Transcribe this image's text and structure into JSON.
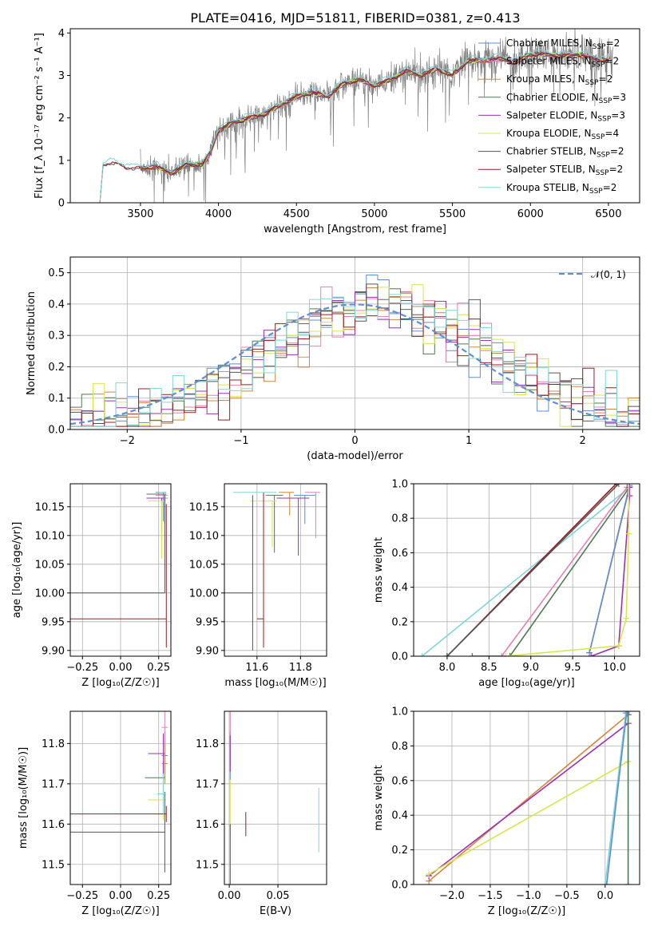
{
  "title": "PLATE=0416, MJD=51811, FIBERID=0381, z=0.413",
  "colors": {
    "Chabrier MILES": "#5b8fcf",
    "Salpeter MILES": "#e57fb5",
    "Kroupa MILES": "#d4843a",
    "Chabrier ELODIE": "#4f7a4f",
    "Salpeter ELODIE": "#9b2fb5",
    "Kroupa ELODIE": "#d9e64a",
    "Chabrier STELIB": "#555555",
    "Salpeter STELIB": "#9b1c1c",
    "Kroupa STELIB": "#7fd6d9",
    "data": "#808080",
    "gauss": "#5b8fd6"
  },
  "chart_data": [
    {
      "type": "line",
      "id": "spectrum",
      "title": "PLATE=0416, MJD=51811, FIBERID=0381, z=0.413",
      "xlabel": "wavelength [Angstrom, rest frame]",
      "ylabel": "Flux [f_λ 10⁻¹⁷ erg cm⁻² s⁻¹ A⁻¹]",
      "xlim": [
        3050,
        6700
      ],
      "ylim": [
        0,
        4.1
      ],
      "xticks": [
        3500,
        4000,
        4500,
        5000,
        5500,
        6000,
        6500
      ],
      "yticks": [
        0,
        1,
        2,
        3,
        4
      ],
      "legend_position": "top-right",
      "legend": [
        {
          "label": "Chabrier MILES, N",
          "sub": "SSP",
          "suffix": "=2",
          "model": "Chabrier MILES"
        },
        {
          "label": "Salpeter MILES, N",
          "sub": "SSP",
          "suffix": "=2",
          "model": "Salpeter MILES"
        },
        {
          "label": "Kroupa MILES, N",
          "sub": "SSP",
          "suffix": "=2",
          "model": "Kroupa MILES"
        },
        {
          "label": "Chabrier ELODIE, N",
          "sub": "SSP",
          "suffix": "=3",
          "model": "Chabrier ELODIE"
        },
        {
          "label": "Salpeter ELODIE, N",
          "sub": "SSP",
          "suffix": "=3",
          "model": "Salpeter ELODIE"
        },
        {
          "label": "Kroupa ELODIE, N",
          "sub": "SSP",
          "suffix": "=4",
          "model": "Kroupa ELODIE"
        },
        {
          "label": "Chabrier STELIB, N",
          "sub": "SSP",
          "suffix": "=2",
          "model": "Chabrier STELIB"
        },
        {
          "label": "Salpeter STELIB, N",
          "sub": "SSP",
          "suffix": "=2",
          "model": "Salpeter STELIB"
        },
        {
          "label": "Kroupa STELIB, N",
          "sub": "SSP",
          "suffix": "=2",
          "model": "Kroupa STELIB"
        }
      ],
      "model_curve": {
        "x": [
          3240,
          3260,
          3300,
          3400,
          3500,
          3600,
          3700,
          3800,
          3900,
          3950,
          4000,
          4100,
          4200,
          4300,
          4400,
          4500,
          4600,
          4700,
          4800,
          4900,
          5000,
          5100,
          5200,
          5300,
          5400,
          5500,
          5600,
          5700,
          5800,
          5900,
          6000,
          6100,
          6200,
          6300,
          6400,
          6500
        ],
        "y": [
          0,
          0.9,
          0.95,
          0.85,
          0.8,
          0.85,
          0.7,
          0.9,
          0.9,
          1.2,
          1.7,
          1.9,
          2.0,
          2.1,
          2.3,
          2.5,
          2.6,
          2.5,
          2.8,
          2.9,
          2.75,
          2.9,
          3.1,
          3.0,
          3.15,
          3.0,
          3.35,
          3.35,
          3.4,
          3.3,
          3.5,
          3.5,
          3.45,
          3.5,
          3.4,
          3.35
        ]
      },
      "data_range": [
        3500,
        6530
      ]
    },
    {
      "type": "line",
      "id": "residuals",
      "xlabel": "(data-model)/error",
      "ylabel": "Normed distribution",
      "xlim": [
        -2.5,
        2.5
      ],
      "ylim": [
        0,
        0.55
      ],
      "xticks": [
        -2,
        -1,
        0,
        1,
        2
      ],
      "yticks": [
        0.0,
        0.1,
        0.2,
        0.3,
        0.4,
        0.5
      ],
      "legend": "𝒩(0, 1)",
      "legend_position": "top-right"
    },
    {
      "type": "scatter",
      "id": "age-vs-Z",
      "xlabel": "Z [log₁₀(Z/Z☉)]",
      "ylabel": "age  [log₁₀(age/yr)]",
      "xlim": [
        -0.33,
        0.33
      ],
      "ylim": [
        9.89,
        10.19
      ],
      "xticks": [
        -0.25,
        0.0,
        0.25
      ],
      "yticks": [
        9.9,
        9.95,
        10.0,
        10.05,
        10.1,
        10.15
      ]
    },
    {
      "type": "scatter",
      "id": "age-vs-mass",
      "xlabel": "mass [log₁₀(M/M☉)]",
      "xlim": [
        11.45,
        11.92
      ],
      "ylim": [
        9.89,
        10.19
      ],
      "xticks": [
        11.6,
        11.8
      ],
      "yticks": [
        9.9,
        9.95,
        10.0,
        10.05,
        10.1,
        10.15
      ]
    },
    {
      "type": "line",
      "id": "cumweight-vs-age",
      "xlabel": "age  [log₁₀(age/yr)]",
      "ylabel": "mass weight",
      "xlim": [
        7.6,
        10.3
      ],
      "ylim": [
        0,
        1
      ],
      "xticks": [
        8.0,
        8.5,
        9.0,
        9.5,
        10.0
      ],
      "yticks": [
        0.0,
        0.2,
        0.4,
        0.6,
        0.8,
        1.0
      ],
      "series": [
        {
          "model": "Kroupa STELIB",
          "x": [
            7.7,
            10.18
          ],
          "y": [
            0,
            0.98
          ]
        },
        {
          "model": "Salpeter STELIB",
          "x": [
            8.0,
            10.02
          ],
          "y": [
            0,
            1.0
          ]
        },
        {
          "model": "Chabrier STELIB",
          "x": [
            8.0,
            10.05
          ],
          "y": [
            0,
            1.0
          ]
        },
        {
          "model": "Salpeter MILES",
          "x": [
            8.65,
            10.15
          ],
          "y": [
            0,
            0.98
          ]
        },
        {
          "model": "Chabrier ELODIE",
          "x": [
            8.3,
            8.75,
            10.18
          ],
          "y": [
            0,
            0,
            0.98
          ]
        },
        {
          "model": "Kroupa MILES",
          "x": [
            9.7,
            10.18
          ],
          "y": [
            0.02,
            0.98
          ]
        },
        {
          "model": "Chabrier MILES",
          "x": [
            9.7,
            10.18
          ],
          "y": [
            0.02,
            0.99
          ]
        },
        {
          "model": "Salpeter ELODIE",
          "x": [
            9.72,
            10.05,
            10.18,
            10.18
          ],
          "y": [
            0,
            0.06,
            0.93,
            0.98
          ]
        },
        {
          "model": "Kroupa ELODIE",
          "x": [
            8.7,
            10.05,
            10.14,
            10.17,
            10.17
          ],
          "y": [
            0,
            0.06,
            0.22,
            0.71,
            1.0
          ]
        }
      ]
    },
    {
      "type": "scatter",
      "id": "mass-vs-Z",
      "xlabel": "Z [log₁₀(Z/Z☉)]",
      "ylabel": "mass [log₁₀(M/M☉)]",
      "xlim": [
        -0.33,
        0.33
      ],
      "ylim": [
        11.45,
        11.88
      ],
      "xticks": [
        -0.25,
        0.0,
        0.25
      ],
      "yticks": [
        11.5,
        11.6,
        11.7,
        11.8
      ]
    },
    {
      "type": "scatter",
      "id": "mass-vs-ebv",
      "xlabel": "E(B-V)",
      "xlim": [
        -0.005,
        0.1
      ],
      "ylim": [
        11.45,
        11.88
      ],
      "xticks": [
        0.0,
        0.05
      ],
      "yticks": [
        11.5,
        11.6,
        11.7,
        11.8
      ]
    },
    {
      "type": "line",
      "id": "cumweight-vs-Z",
      "xlabel": "Z [log₁₀(Z/Z☉)]",
      "ylabel": "mass weight",
      "xlim": [
        -2.5,
        0.45
      ],
      "ylim": [
        0,
        1
      ],
      "xticks": [
        -2.0,
        -1.5,
        -1.0,
        -0.5,
        0.0
      ],
      "yticks": [
        0.0,
        0.2,
        0.4,
        0.6,
        0.8,
        1.0
      ],
      "series": [
        {
          "model": "Kroupa MILES",
          "x": [
            -2.3,
            0.3
          ],
          "y": [
            0.02,
            0.98
          ]
        },
        {
          "model": "Salpeter ELODIE",
          "x": [
            -2.3,
            0.3,
            0.3
          ],
          "y": [
            0.05,
            0.93,
            0.98
          ]
        },
        {
          "model": "Kroupa ELODIE",
          "x": [
            -2.3,
            0.3,
            0.3
          ],
          "y": [
            0.06,
            0.71,
            1.0
          ]
        },
        {
          "model": "Kroupa STELIB",
          "x": [
            0.0,
            0.27
          ],
          "y": [
            0,
            0.99
          ]
        },
        {
          "model": "Chabrier MILES",
          "x": [
            0.02,
            0.28
          ],
          "y": [
            0,
            0.99
          ]
        },
        {
          "model": "Chabrier ELODIE",
          "x": [
            0.3,
            0.3
          ],
          "y": [
            0,
            1.0
          ]
        }
      ]
    }
  ]
}
